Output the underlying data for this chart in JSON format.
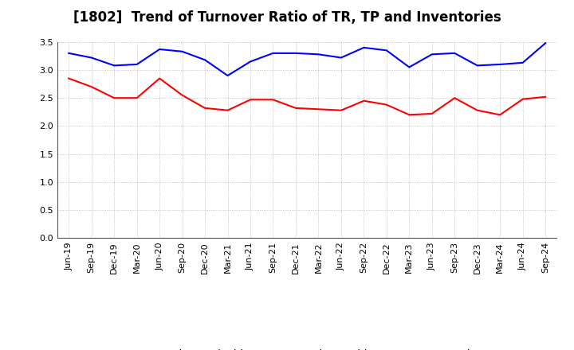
{
  "title": "[1802]  Trend of Turnover Ratio of TR, TP and Inventories",
  "x_labels": [
    "Jun-19",
    "Sep-19",
    "Dec-19",
    "Mar-20",
    "Jun-20",
    "Sep-20",
    "Dec-20",
    "Mar-21",
    "Jun-21",
    "Sep-21",
    "Dec-21",
    "Mar-22",
    "Jun-22",
    "Sep-22",
    "Dec-22",
    "Mar-23",
    "Jun-23",
    "Sep-23",
    "Dec-23",
    "Mar-24",
    "Jun-24",
    "Sep-24"
  ],
  "trade_receivables": [
    2.85,
    2.7,
    2.5,
    2.5,
    2.85,
    2.55,
    2.32,
    2.28,
    2.47,
    2.47,
    2.32,
    2.3,
    2.28,
    2.45,
    2.38,
    2.2,
    2.22,
    2.5,
    2.28,
    2.2,
    2.48,
    2.52
  ],
  "trade_payables": [
    3.3,
    3.22,
    3.08,
    3.1,
    3.37,
    3.33,
    3.18,
    2.9,
    3.15,
    3.3,
    3.3,
    3.28,
    3.22,
    3.4,
    3.35,
    3.05,
    3.28,
    3.3,
    3.08,
    3.1,
    3.13,
    3.48
  ],
  "ylim": [
    0.0,
    3.5
  ],
  "yticks": [
    0.0,
    0.5,
    1.0,
    1.5,
    2.0,
    2.5,
    3.0,
    3.5
  ],
  "tr_color": "#ff0000",
  "tp_color": "#0000ff",
  "inv_color": "#008000",
  "bg_color": "#ffffff",
  "grid_color": "#aaaaaa",
  "title_fontsize": 12,
  "legend_fontsize": 9.5,
  "tick_fontsize": 8
}
